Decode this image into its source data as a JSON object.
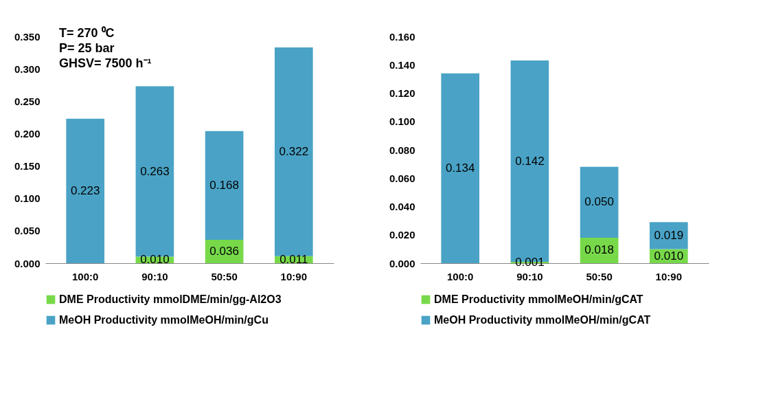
{
  "chart_data": [
    {
      "type": "bar",
      "stacked": true,
      "categories": [
        "100:0",
        "90:10",
        "50:50",
        "10:90"
      ],
      "series": [
        {
          "name": "DME Productivity  mmolDME/min/gg-Al2O3",
          "color": "#77d94a",
          "values": [
            null,
            0.01,
            0.036,
            0.011
          ],
          "value_labels": [
            null,
            "0.010",
            "0.036",
            "0.011"
          ]
        },
        {
          "name": "MeOH Productivity  mmolMeOH/min/gCu",
          "color": "#4aa3c6",
          "values": [
            0.223,
            0.263,
            0.168,
            0.322
          ],
          "value_labels": [
            "0.223",
            "0.263",
            "0.168",
            "0.322"
          ]
        }
      ],
      "ylim": [
        0,
        0.35
      ],
      "yticks": [
        {
          "value": 0,
          "label": "0.000"
        },
        {
          "value": 0.05,
          "label": "0.050"
        },
        {
          "value": 0.1,
          "label": "0.100"
        },
        {
          "value": 0.15,
          "label": "0.150"
        },
        {
          "value": 0.2,
          "label": "0.200"
        },
        {
          "value": 0.25,
          "label": "0.250"
        },
        {
          "value": 0.3,
          "label": "0.300"
        },
        {
          "value": 0.35,
          "label": "0.350"
        }
      ],
      "annotations": [
        "T= 270 ⁰C",
        "P= 25 bar",
        "GHSV= 7500 h⁻¹"
      ],
      "grid": false,
      "legend": "bottom"
    },
    {
      "type": "bar",
      "stacked": true,
      "categories": [
        "100:0",
        "90:10",
        "50:50",
        "10:90"
      ],
      "series": [
        {
          "name": "DME Productivity  mmolMeOH/min/gCAT",
          "color": "#77d94a",
          "values": [
            null,
            0.001,
            0.018,
            0.01
          ],
          "value_labels": [
            null,
            "0.001",
            "0.018",
            "0.010"
          ]
        },
        {
          "name": "MeOH Productivity mmolMeOH/min/gCAT",
          "color": "#4aa3c6",
          "values": [
            0.134,
            0.142,
            0.05,
            0.019
          ],
          "value_labels": [
            "0.134",
            "0.142",
            "0.050",
            "0.019"
          ]
        }
      ],
      "ylim": [
        0,
        0.16
      ],
      "yticks": [
        {
          "value": 0,
          "label": "0.000"
        },
        {
          "value": 0.02,
          "label": "0.020"
        },
        {
          "value": 0.04,
          "label": "0.040"
        },
        {
          "value": 0.06,
          "label": "0.060"
        },
        {
          "value": 0.08,
          "label": "0.080"
        },
        {
          "value": 0.1,
          "label": "0.100"
        },
        {
          "value": 0.12,
          "label": "0.120"
        },
        {
          "value": 0.14,
          "label": "0.140"
        },
        {
          "value": 0.16,
          "label": "0.160"
        }
      ],
      "grid": false,
      "legend": "bottom"
    }
  ]
}
